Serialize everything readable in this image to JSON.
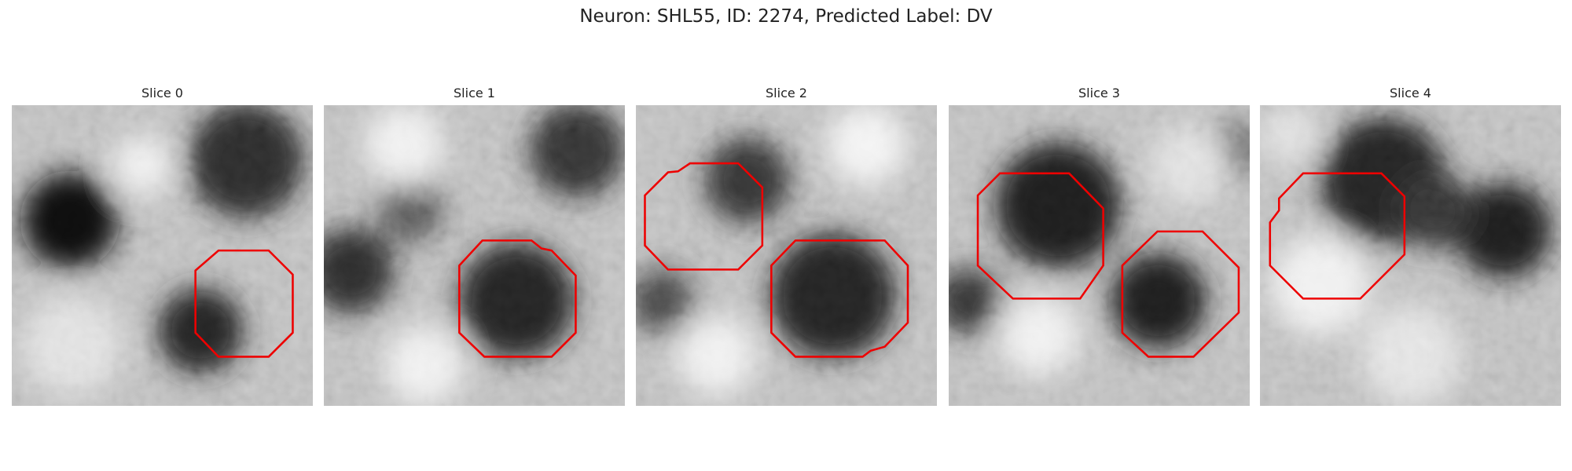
{
  "title": "Neuron: SHL55, ID: 2274, Predicted Label: DV",
  "panels": [
    {
      "title": "Slice 0"
    },
    {
      "title": "Slice 1"
    },
    {
      "title": "Slice 2"
    },
    {
      "title": "Slice 3"
    },
    {
      "title": "Slice 4"
    }
  ]
}
